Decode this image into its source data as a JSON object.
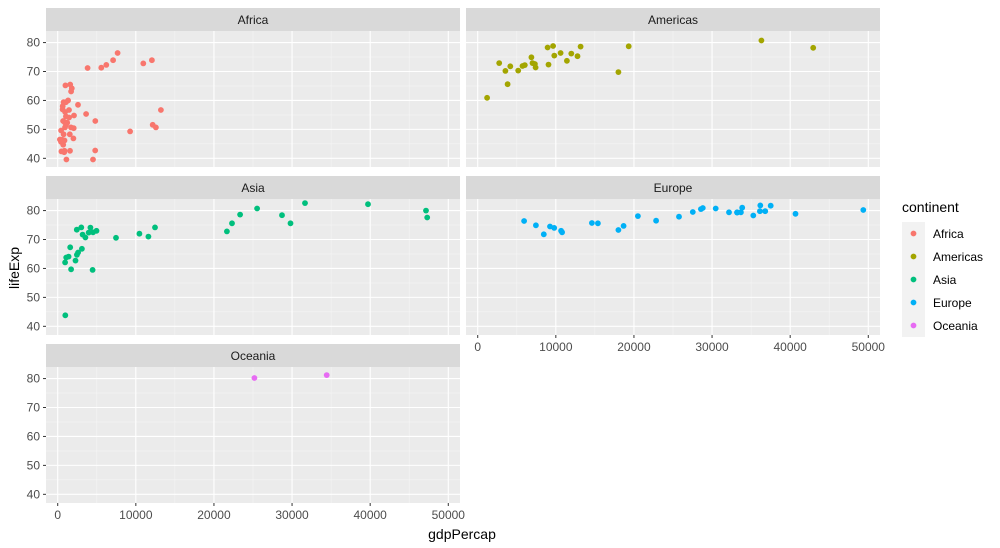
{
  "chart_data": {
    "type": "scatter",
    "facet_by": "continent",
    "xlabel": "gdpPercap",
    "ylabel": "lifeExp",
    "xlim": [
      -1500,
      51500
    ],
    "ylim": [
      37,
      84
    ],
    "x_ticks": [
      0,
      10000,
      20000,
      30000,
      40000,
      50000
    ],
    "y_ticks": [
      40,
      50,
      60,
      70,
      80
    ],
    "grid": true,
    "legend": {
      "title": "continent",
      "position": "right",
      "entries": [
        {
          "label": "Africa",
          "color": "#F8766D"
        },
        {
          "label": "Americas",
          "color": "#A3A500"
        },
        {
          "label": "Asia",
          "color": "#00BF7D"
        },
        {
          "label": "Europe",
          "color": "#00B0F6"
        },
        {
          "label": "Oceania",
          "color": "#E76BF3"
        }
      ]
    },
    "facets": [
      {
        "name": "Africa",
        "color": "#F8766D",
        "points": [
          [
            6223,
            72.3
          ],
          [
            4797,
            42.7
          ],
          [
            1441,
            56.7
          ],
          [
            12570,
            50.7
          ],
          [
            1217,
            52.3
          ],
          [
            430,
            49.6
          ],
          [
            2042,
            50.4
          ],
          [
            706,
            44.7
          ],
          [
            1704,
            50.7
          ],
          [
            986,
            65.2
          ],
          [
            277,
            46.5
          ],
          [
            3633,
            55.3
          ],
          [
            1544,
            48.3
          ],
          [
            2082,
            54.8
          ],
          [
            5581,
            71.3
          ],
          [
            12154,
            51.6
          ],
          [
            641,
            58.0
          ],
          [
            690,
            52.9
          ],
          [
            13206,
            56.7
          ],
          [
            753,
            59.4
          ],
          [
            1327,
            60.0
          ],
          [
            943,
            56.0
          ],
          [
            579,
            46.4
          ],
          [
            1463,
            54.1
          ],
          [
            1569,
            42.6
          ],
          [
            414,
            45.7
          ],
          [
            12057,
            73.9
          ],
          [
            1045,
            59.4
          ],
          [
            759,
            48.3
          ],
          [
            1042,
            54.5
          ],
          [
            1803,
            64.2
          ],
          [
            10957,
            72.8
          ],
          [
            3820,
            71.2
          ],
          [
            824,
            42.1
          ],
          [
            4811,
            52.9
          ],
          [
            620,
            56.9
          ],
          [
            2014,
            46.9
          ],
          [
            7670,
            76.4
          ],
          [
            863,
            46.2
          ],
          [
            1598,
            65.5
          ],
          [
            1712,
            63.1
          ],
          [
            862,
            42.6
          ],
          [
            926,
            50.7
          ],
          [
            9270,
            49.3
          ],
          [
            4513,
            39.6
          ],
          [
            2602,
            58.5
          ],
          [
            1107,
            39.6
          ],
          [
            882,
            52.5
          ],
          [
            7093,
            73.9
          ],
          [
            1056,
            51.5
          ],
          [
            470,
            42.4
          ]
        ]
      },
      {
        "name": "Americas",
        "color": "#A3A500",
        "points": [
          [
            12779,
            75.3
          ],
          [
            3822,
            65.6
          ],
          [
            9066,
            72.4
          ],
          [
            36319,
            80.7
          ],
          [
            13172,
            78.6
          ],
          [
            7007,
            72.9
          ],
          [
            9645,
            78.8
          ],
          [
            8948,
            78.3
          ],
          [
            6025,
            72.2
          ],
          [
            6873,
            74.9
          ],
          [
            5728,
            71.9
          ],
          [
            5186,
            70.3
          ],
          [
            1202,
            60.9
          ],
          [
            3548,
            70.2
          ],
          [
            7321,
            72.6
          ],
          [
            11978,
            76.2
          ],
          [
            2749,
            72.9
          ],
          [
            9809,
            75.5
          ],
          [
            4173,
            71.8
          ],
          [
            7408,
            71.4
          ],
          [
            19329,
            78.7
          ],
          [
            18009,
            69.8
          ],
          [
            42952,
            78.2
          ],
          [
            10611,
            76.4
          ],
          [
            11416,
            73.7
          ]
        ]
      },
      {
        "name": "Asia",
        "color": "#00BF7D",
        "points": [
          [
            975,
            43.8
          ],
          [
            29796,
            75.6
          ],
          [
            1391,
            64.1
          ],
          [
            1714,
            59.7
          ],
          [
            4959,
            73.0
          ],
          [
            39725,
            82.2
          ],
          [
            2452,
            64.7
          ],
          [
            3541,
            70.7
          ],
          [
            11606,
            71.0
          ],
          [
            4471,
            59.5
          ],
          [
            25523,
            80.7
          ],
          [
            31656,
            82.6
          ],
          [
            4519,
            72.5
          ],
          [
            1593,
            67.3
          ],
          [
            23348,
            78.6
          ],
          [
            47307,
            77.6
          ],
          [
            10461,
            72.0
          ],
          [
            12452,
            74.2
          ],
          [
            3096,
            66.8
          ],
          [
            944,
            62.1
          ],
          [
            1091,
            63.8
          ],
          [
            22316,
            75.6
          ],
          [
            2606,
            65.5
          ],
          [
            3190,
            71.7
          ],
          [
            21655,
            72.8
          ],
          [
            47143,
            80.0
          ],
          [
            3970,
            72.4
          ],
          [
            4185,
            74.1
          ],
          [
            28718,
            78.4
          ],
          [
            7458,
            70.6
          ],
          [
            3025,
            74.2
          ],
          [
            2442,
            73.4
          ],
          [
            2281,
            62.7
          ]
        ]
      },
      {
        "name": "Europe",
        "color": "#00B0F6",
        "points": [
          [
            5937,
            76.4
          ],
          [
            36126,
            79.8
          ],
          [
            33693,
            79.4
          ],
          [
            7446,
            74.9
          ],
          [
            10681,
            73.0
          ],
          [
            14619,
            75.7
          ],
          [
            22833,
            76.5
          ],
          [
            35278,
            78.3
          ],
          [
            33207,
            79.3
          ],
          [
            30470,
            80.7
          ],
          [
            32170,
            79.4
          ],
          [
            27538,
            79.5
          ],
          [
            18009,
            73.3
          ],
          [
            36181,
            81.8
          ],
          [
            40676,
            78.9
          ],
          [
            28570,
            80.5
          ],
          [
            9254,
            74.5
          ],
          [
            36798,
            79.8
          ],
          [
            49357,
            80.2
          ],
          [
            15390,
            75.6
          ],
          [
            20510,
            78.1
          ],
          [
            10808,
            72.5
          ],
          [
            9787,
            74.0
          ],
          [
            18678,
            74.7
          ],
          [
            25768,
            77.9
          ],
          [
            28821,
            80.9
          ],
          [
            33860,
            81.0
          ],
          [
            37506,
            81.7
          ],
          [
            8458,
            71.8
          ],
          [
            33203,
            79.4
          ]
        ]
      },
      {
        "name": "Oceania",
        "color": "#E76BF3",
        "points": [
          [
            34435,
            81.2
          ],
          [
            25185,
            80.2
          ]
        ]
      }
    ]
  }
}
